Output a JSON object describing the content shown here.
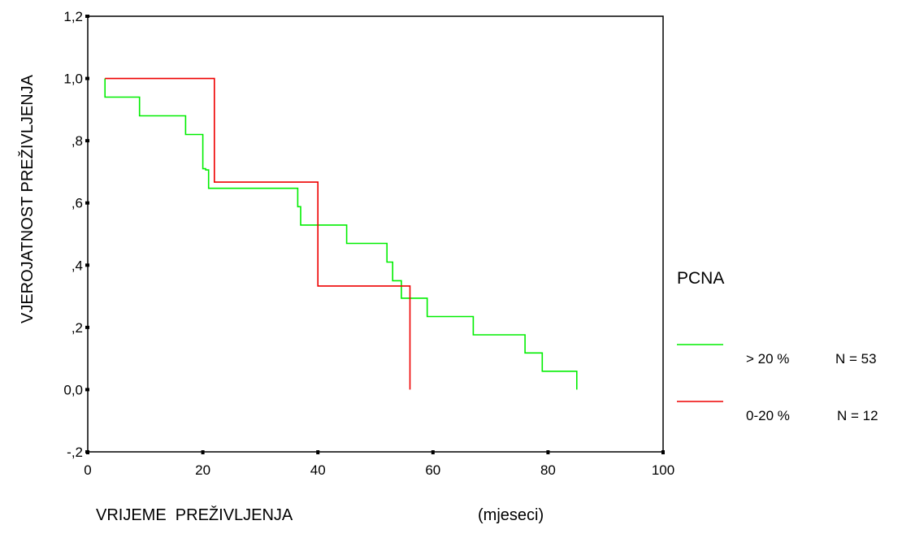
{
  "chart_data": {
    "type": "line",
    "step": true,
    "xlabel": "VRIJEME  PREŽIVLJENJA",
    "xlabel_unit": "(mjeseci)",
    "ylabel": "VJEROJATNOST  PREŽIVLJENJA",
    "xlim": [
      0,
      100
    ],
    "ylim": [
      -0.2,
      1.2
    ],
    "x_ticks": [
      0,
      20,
      40,
      60,
      80,
      100
    ],
    "x_tick_labels": [
      "0",
      "20",
      "40",
      "60",
      "80",
      "100"
    ],
    "y_ticks": [
      -0.2,
      0.0,
      0.2,
      0.4,
      0.6,
      0.8,
      1.0,
      1.2
    ],
    "y_tick_labels": [
      "-,2",
      "0,0",
      ",2",
      ",4",
      ",6",
      ",8",
      "1,0",
      "1,2"
    ],
    "grid": false,
    "legend": {
      "title": "PCNA",
      "position": "right"
    },
    "series": [
      {
        "name": "> 20 %",
        "n_label": "N = 53",
        "color": "#00ee00",
        "x": [
          3,
          3,
          9,
          9,
          17,
          17,
          20,
          20,
          20.5,
          20.5,
          21,
          21,
          36.5,
          36.5,
          37,
          37,
          45,
          45,
          52,
          52,
          53,
          53,
          54.5,
          54.5,
          59,
          59,
          67,
          67,
          76,
          76,
          79,
          79,
          85,
          85
        ],
        "y": [
          1.0,
          0.94,
          0.94,
          0.88,
          0.88,
          0.82,
          0.82,
          0.71,
          0.71,
          0.706,
          0.706,
          0.647,
          0.647,
          0.588,
          0.588,
          0.529,
          0.529,
          0.47,
          0.47,
          0.41,
          0.41,
          0.35,
          0.35,
          0.294,
          0.294,
          0.235,
          0.235,
          0.176,
          0.176,
          0.118,
          0.118,
          0.059,
          0.059,
          0.0
        ]
      },
      {
        "name": "0-20 %",
        "n_label": "N = 12",
        "color": "#ee0000",
        "x": [
          3,
          22,
          22,
          40,
          40,
          56,
          56
        ],
        "y": [
          1.0,
          1.0,
          0.667,
          0.667,
          0.333,
          0.333,
          0.0
        ]
      }
    ]
  }
}
